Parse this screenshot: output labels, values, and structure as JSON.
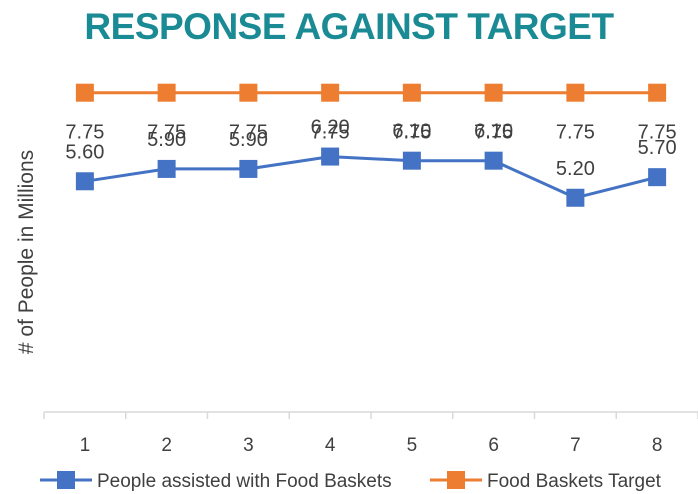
{
  "chart_data": {
    "type": "line",
    "title": "RESPONSE AGAINST TARGET",
    "title_color": "#1a8a94",
    "xlabel": "",
    "ylabel": "# of People in Millions",
    "x": [
      "1",
      "2",
      "3",
      "4",
      "5",
      "6",
      "7",
      "8"
    ],
    "ylim": [
      0,
      10
    ],
    "grid": false,
    "legend_position": "bottom",
    "series": [
      {
        "name": "People assisted with Food Baskets",
        "color": "#4472c4",
        "marker": "square",
        "values": [
          5.6,
          5.9,
          5.9,
          6.2,
          6.1,
          6.1,
          5.2,
          5.7
        ],
        "labels": [
          "5.60",
          "5.90",
          "5.90",
          "6.20",
          "6.10",
          "6.10",
          "5.20",
          "5.70"
        ]
      },
      {
        "name": "Food Baskets Target",
        "color": "#ed7d31",
        "marker": "square",
        "values": [
          7.75,
          7.75,
          7.75,
          7.75,
          7.75,
          7.75,
          7.75,
          7.75
        ],
        "labels": [
          "7.75",
          "7.75",
          "7.75",
          "7.75",
          "7.75",
          "7.75",
          "7.75",
          "7.75"
        ]
      }
    ]
  }
}
